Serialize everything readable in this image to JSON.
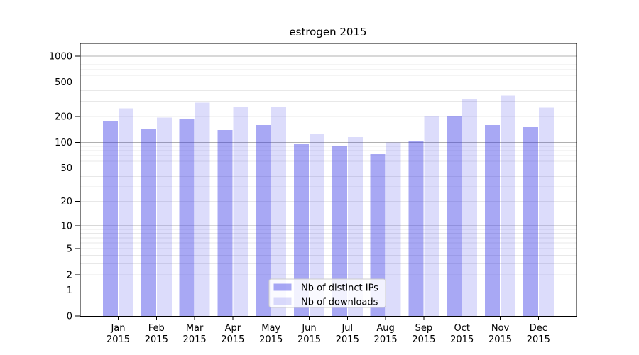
{
  "chart_data": {
    "type": "bar",
    "title": "estrogen 2015",
    "scale": "log-like (position proportional to log10(value+1), 0 at baseline)",
    "categories": [
      "Jan",
      "Feb",
      "Mar",
      "Apr",
      "May",
      "Jun",
      "Jul",
      "Aug",
      "Sep",
      "Oct",
      "Nov",
      "Dec"
    ],
    "category_year": "2015",
    "series": [
      {
        "name": "Nb of distinct IPs",
        "color": "rgba(47,47,229,0.42)",
        "values": [
          175,
          145,
          190,
          140,
          160,
          95,
          90,
          73,
          105,
          205,
          160,
          150
        ]
      },
      {
        "name": "Nb of downloads",
        "color": "rgba(47,47,229,0.17)",
        "values": [
          250,
          195,
          290,
          260,
          260,
          125,
          115,
          100,
          200,
          320,
          350,
          255
        ]
      }
    ],
    "ytick_labels": [
      "1000",
      "500",
      "200",
      "100",
      "50",
      "20",
      "10",
      "5",
      "2",
      "1",
      "0"
    ],
    "ytick_values": [
      1000,
      500,
      200,
      100,
      50,
      20,
      10,
      5,
      2,
      1,
      0
    ],
    "major_gridlines": [
      1,
      10,
      100,
      1000
    ],
    "minor_gridlines": [
      2,
      3,
      4,
      5,
      6,
      7,
      8,
      9,
      20,
      30,
      40,
      50,
      60,
      70,
      80,
      90,
      200,
      300,
      400,
      500,
      600,
      700,
      800,
      900
    ],
    "ylim": [
      0,
      1380
    ],
    "legend_position": "lower center (inside plot)",
    "grid": "on",
    "colors": {
      "major_grid": "#b0b0b0",
      "minor_grid": "#e8e8e8",
      "axis": "#000000",
      "legend_border": "#cccccc",
      "legend_bg": "rgba(255,255,255,0.85)"
    }
  }
}
